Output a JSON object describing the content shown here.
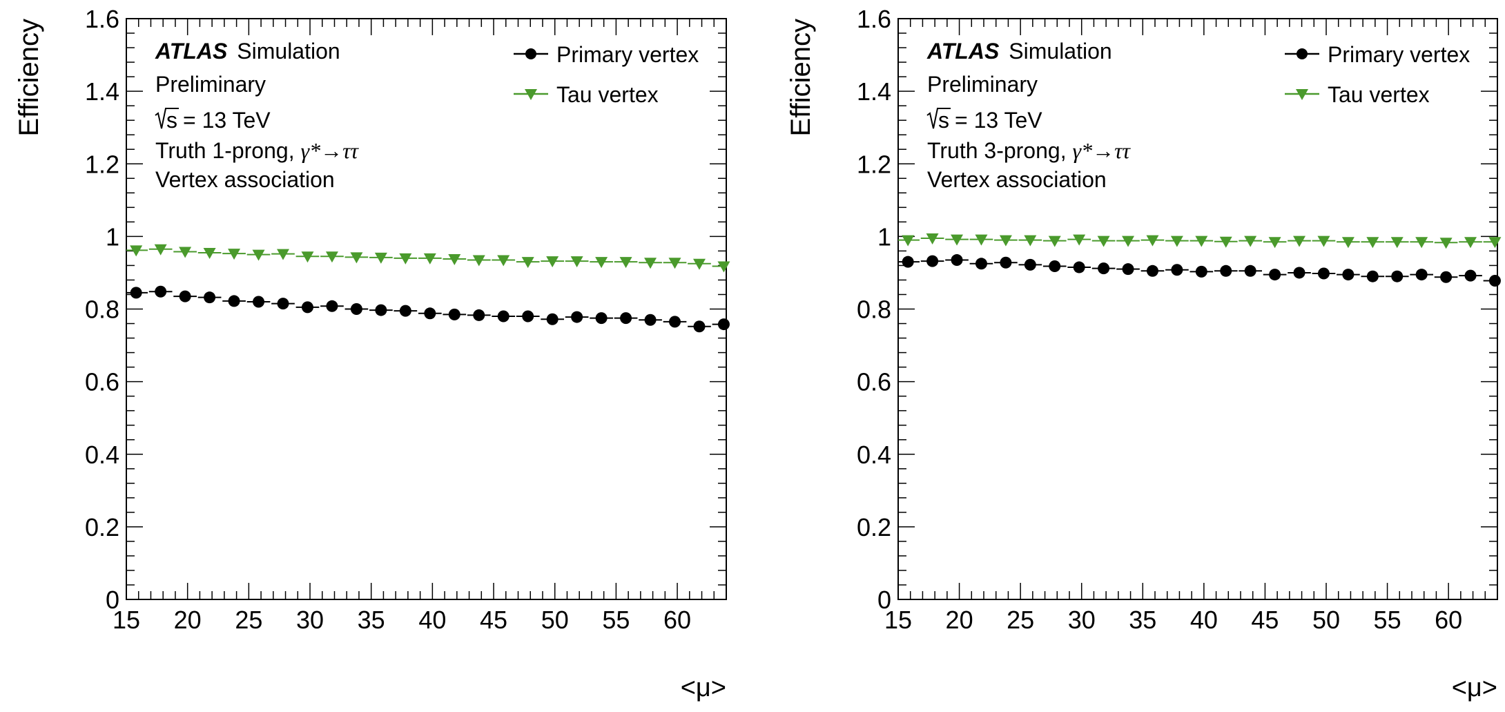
{
  "chart_data": [
    {
      "type": "scatter",
      "xlabel": "<μ>",
      "ylabel": "Efficiency",
      "xlim": [
        15,
        64
      ],
      "ylim": [
        0,
        1.6
      ],
      "x_ticks": [
        15,
        20,
        25,
        30,
        35,
        40,
        45,
        50,
        55,
        60
      ],
      "y_ticks": [
        0,
        0.2,
        0.4,
        0.6,
        0.8,
        1,
        1.2,
        1.4,
        1.6
      ],
      "x_tick_labels": [
        "15",
        "20",
        "25",
        "30",
        "35",
        "40",
        "45",
        "50",
        "55",
        "60"
      ],
      "y_tick_labels": [
        "0",
        "0.2",
        "0.4",
        "0.6",
        "0.8",
        "1",
        "1.2",
        "1.4",
        "1.6"
      ],
      "annotations": {
        "atlas": "ATLAS",
        "simulation": "Simulation",
        "preliminary": "Preliminary",
        "sqrt_s": "s",
        "energy": "= 13 TeV",
        "truth": "Truth 1-prong, ",
        "process": "γ*→ττ",
        "selection": "Vertex association"
      },
      "legend_position": "top-right",
      "x": [
        15.8,
        17.8,
        19.8,
        21.8,
        23.8,
        25.8,
        27.8,
        29.8,
        31.8,
        33.8,
        35.8,
        37.8,
        39.8,
        41.8,
        43.8,
        45.8,
        47.8,
        49.8,
        51.8,
        53.8,
        55.8,
        57.8,
        59.8,
        61.8,
        63.8
      ],
      "series": [
        {
          "name": "Primary vertex",
          "color": "#000000",
          "marker": "circle",
          "values": [
            0.845,
            0.848,
            0.835,
            0.832,
            0.822,
            0.82,
            0.815,
            0.805,
            0.808,
            0.8,
            0.797,
            0.795,
            0.788,
            0.785,
            0.783,
            0.78,
            0.78,
            0.772,
            0.778,
            0.775,
            0.775,
            0.77,
            0.765,
            0.752,
            0.758
          ]
        },
        {
          "name": "Tau vertex",
          "color": "#4a9a2c",
          "marker": "triangle-down",
          "values": [
            0.962,
            0.965,
            0.958,
            0.955,
            0.953,
            0.95,
            0.952,
            0.945,
            0.945,
            0.943,
            0.942,
            0.94,
            0.94,
            0.938,
            0.935,
            0.935,
            0.93,
            0.932,
            0.932,
            0.93,
            0.93,
            0.928,
            0.928,
            0.925,
            0.918
          ]
        }
      ]
    },
    {
      "type": "scatter",
      "xlabel": "<μ>",
      "ylabel": "Efficiency",
      "xlim": [
        15,
        64
      ],
      "ylim": [
        0,
        1.6
      ],
      "x_ticks": [
        15,
        20,
        25,
        30,
        35,
        40,
        45,
        50,
        55,
        60
      ],
      "y_ticks": [
        0,
        0.2,
        0.4,
        0.6,
        0.8,
        1,
        1.2,
        1.4,
        1.6
      ],
      "x_tick_labels": [
        "15",
        "20",
        "25",
        "30",
        "35",
        "40",
        "45",
        "50",
        "55",
        "60"
      ],
      "y_tick_labels": [
        "0",
        "0.2",
        "0.4",
        "0.6",
        "0.8",
        "1",
        "1.2",
        "1.4",
        "1.6"
      ],
      "annotations": {
        "atlas": "ATLAS",
        "simulation": "Simulation",
        "preliminary": "Preliminary",
        "sqrt_s": "s",
        "energy": "= 13 TeV",
        "truth": "Truth 3-prong, ",
        "process": "γ*→ττ",
        "selection": "Vertex association"
      },
      "legend_position": "top-right",
      "x": [
        15.8,
        17.8,
        19.8,
        21.8,
        23.8,
        25.8,
        27.8,
        29.8,
        31.8,
        33.8,
        35.8,
        37.8,
        39.8,
        41.8,
        43.8,
        45.8,
        47.8,
        49.8,
        51.8,
        53.8,
        55.8,
        57.8,
        59.8,
        61.8,
        63.8
      ],
      "series": [
        {
          "name": "Primary vertex",
          "color": "#000000",
          "marker": "circle",
          "values": [
            0.93,
            0.932,
            0.935,
            0.925,
            0.928,
            0.922,
            0.918,
            0.915,
            0.912,
            0.91,
            0.905,
            0.908,
            0.903,
            0.905,
            0.905,
            0.895,
            0.9,
            0.898,
            0.895,
            0.89,
            0.89,
            0.895,
            0.888,
            0.892,
            0.878
          ]
        },
        {
          "name": "Tau vertex",
          "color": "#4a9a2c",
          "marker": "triangle-down",
          "values": [
            0.99,
            0.995,
            0.992,
            0.992,
            0.99,
            0.99,
            0.988,
            0.992,
            0.988,
            0.988,
            0.99,
            0.988,
            0.988,
            0.986,
            0.988,
            0.985,
            0.988,
            0.988,
            0.985,
            0.985,
            0.985,
            0.985,
            0.983,
            0.985,
            0.985
          ]
        }
      ]
    }
  ]
}
